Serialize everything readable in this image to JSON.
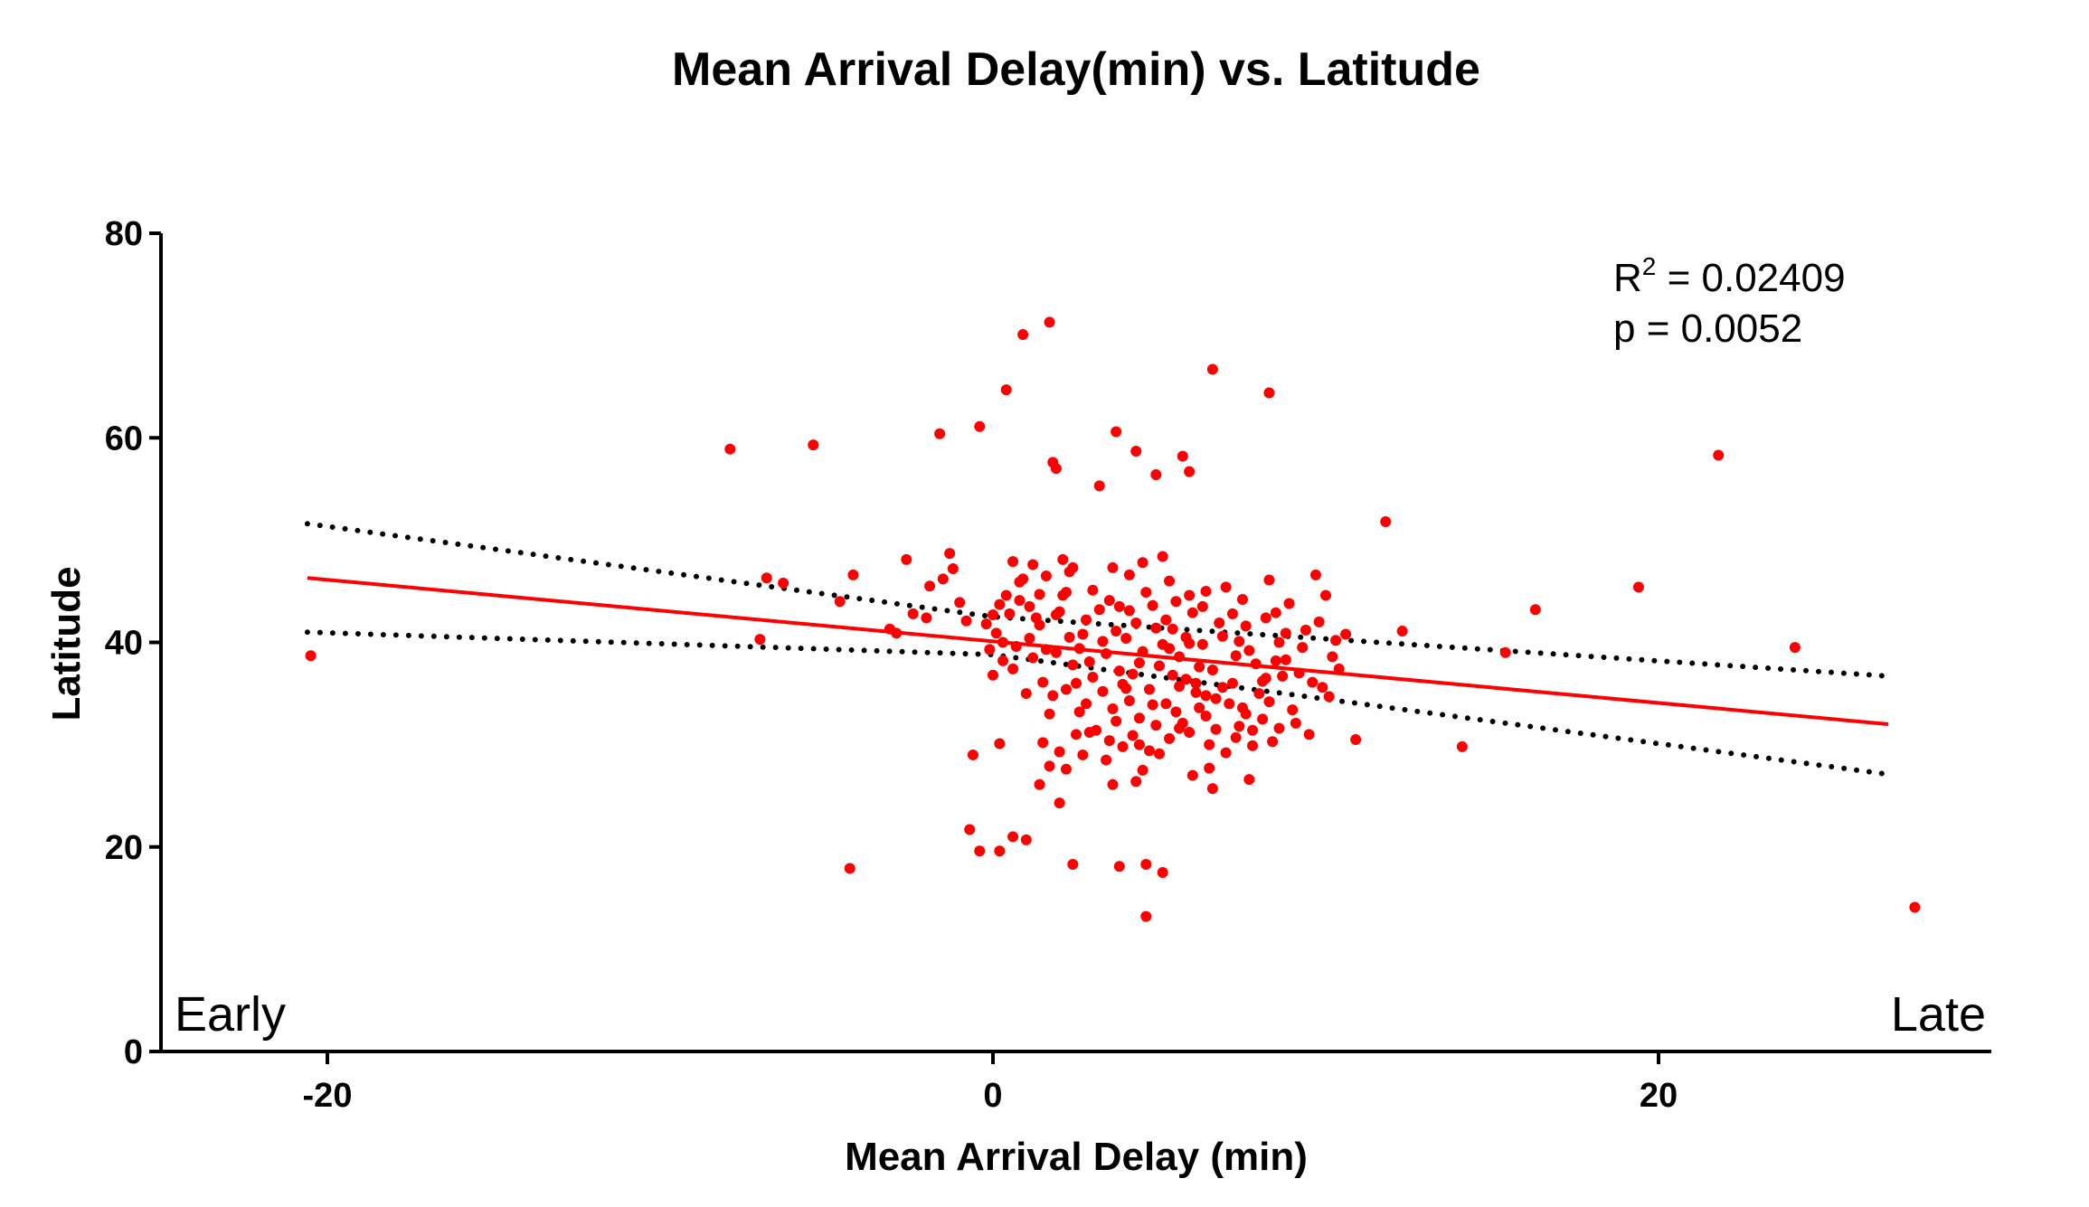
{
  "chart_data": {
    "type": "scatter",
    "title": "Mean Arrival Delay(min) vs. Latitude",
    "xlabel": "Mean Arrival Delay (min)",
    "ylabel": "Latitude",
    "xlim": [
      -25,
      30
    ],
    "ylim": [
      0,
      80
    ],
    "x_ticks": [
      -20,
      0,
      20
    ],
    "x_tick_labels": [
      "-20",
      "0",
      "20"
    ],
    "y_ticks": [
      0,
      20,
      40,
      60,
      80
    ],
    "y_tick_labels": [
      "0",
      "20",
      "40",
      "60",
      "80"
    ],
    "grid": false,
    "legend": "none",
    "colors": {
      "points": "#ff0000",
      "fit_line": "#ff0000",
      "confidence_band": "#000000",
      "axes": "#000000"
    },
    "annotations": {
      "r2_prefix": "R",
      "r2_exponent": "2",
      "r2_value": " = 0.02409",
      "p_text": "p = 0.0052",
      "early_label": "Early",
      "late_label": "Late"
    },
    "fit_line": {
      "x": [
        -20.6,
        26.9
      ],
      "y": [
        46.3,
        32.0
      ]
    },
    "confidence_band_upper": {
      "x": [
        -20.6,
        0.0,
        26.9
      ],
      "y": [
        51.6,
        42.5,
        36.7
      ]
    },
    "confidence_band_lower": {
      "x": [
        -20.6,
        0.0,
        26.9
      ],
      "y": [
        41.0,
        38.8,
        27.1
      ]
    },
    "series": [
      {
        "points": [
          [
            -20.5,
            38.7
          ],
          [
            -7.9,
            58.9
          ],
          [
            -5.4,
            59.3
          ],
          [
            -7.0,
            40.3
          ],
          [
            -6.8,
            46.3
          ],
          [
            -6.3,
            45.8
          ],
          [
            -4.2,
            46.6
          ],
          [
            -4.6,
            44.0
          ],
          [
            -4.3,
            17.9
          ],
          [
            -2.6,
            48.1
          ],
          [
            -2.4,
            42.8
          ],
          [
            -3.1,
            41.3
          ],
          [
            -2.9,
            40.9
          ],
          [
            -1.9,
            45.5
          ],
          [
            -1.6,
            60.4
          ],
          [
            -1.5,
            46.2
          ],
          [
            -1.3,
            48.7
          ],
          [
            -1.2,
            47.2
          ],
          [
            -0.8,
            42.1
          ],
          [
            -0.6,
            29.0
          ],
          [
            -0.7,
            21.7
          ],
          [
            -0.4,
            61.1
          ],
          [
            -0.4,
            19.6
          ],
          [
            0.0,
            42.7
          ],
          [
            0.2,
            30.1
          ],
          [
            0.2,
            19.6
          ],
          [
            0.4,
            64.7
          ],
          [
            0.6,
            47.9
          ],
          [
            0.6,
            21.0
          ],
          [
            0.9,
            70.1
          ],
          [
            1.0,
            20.7
          ],
          [
            1.4,
            41.7
          ],
          [
            1.4,
            26.1
          ],
          [
            1.7,
            71.3
          ],
          [
            1.8,
            57.6
          ],
          [
            1.9,
            57.0
          ],
          [
            1.7,
            33.0
          ],
          [
            2.0,
            24.3
          ],
          [
            2.2,
            27.6
          ],
          [
            2.4,
            18.3
          ],
          [
            2.1,
            44.6
          ],
          [
            2.3,
            40.5
          ],
          [
            2.5,
            36.0
          ],
          [
            2.9,
            31.2
          ],
          [
            3.2,
            55.3
          ],
          [
            3.6,
            26.1
          ],
          [
            3.7,
            60.6
          ],
          [
            3.8,
            18.1
          ],
          [
            4.1,
            46.6
          ],
          [
            4.3,
            58.7
          ],
          [
            4.4,
            30.0
          ],
          [
            4.5,
            27.5
          ],
          [
            4.6,
            18.3
          ],
          [
            4.6,
            13.2
          ],
          [
            4.9,
            56.4
          ],
          [
            5.1,
            17.5
          ],
          [
            5.1,
            48.4
          ],
          [
            5.3,
            39.4
          ],
          [
            5.6,
            35.7
          ],
          [
            5.7,
            58.2
          ],
          [
            5.9,
            56.7
          ],
          [
            5.9,
            44.6
          ],
          [
            6.2,
            37.6
          ],
          [
            6.4,
            34.8
          ],
          [
            6.5,
            27.7
          ],
          [
            6.6,
            66.7
          ],
          [
            7.0,
            45.4
          ],
          [
            7.3,
            30.7
          ],
          [
            7.4,
            40.1
          ],
          [
            7.7,
            26.6
          ],
          [
            8.1,
            36.2
          ],
          [
            8.3,
            64.4
          ],
          [
            8.3,
            46.1
          ],
          [
            8.6,
            31.6
          ],
          [
            9.1,
            32.1
          ],
          [
            9.4,
            41.2
          ],
          [
            9.7,
            46.6
          ],
          [
            10.0,
            44.6
          ],
          [
            10.2,
            38.6
          ],
          [
            10.6,
            40.8
          ],
          [
            10.9,
            30.5
          ],
          [
            11.8,
            51.8
          ],
          [
            12.3,
            41.1
          ],
          [
            14.1,
            29.8
          ],
          [
            15.4,
            39.0
          ],
          [
            16.3,
            43.2
          ],
          [
            19.4,
            45.4
          ],
          [
            21.8,
            58.3
          ],
          [
            24.1,
            39.5
          ],
          [
            27.7,
            14.1
          ],
          [
            0.3,
            38.2
          ],
          [
            0.5,
            42.8
          ],
          [
            0.8,
            44.1
          ],
          [
            1.1,
            40.4
          ],
          [
            1.2,
            38.5
          ],
          [
            1.5,
            36.1
          ],
          [
            1.6,
            39.3
          ],
          [
            1.9,
            42.7
          ],
          [
            2.1,
            48.1
          ],
          [
            2.2,
            44.9
          ],
          [
            2.4,
            37.8
          ],
          [
            2.6,
            33.2
          ],
          [
            2.7,
            40.8
          ],
          [
            2.8,
            42.2
          ],
          [
            3.0,
            36.6
          ],
          [
            3.1,
            31.4
          ],
          [
            3.3,
            35.2
          ],
          [
            3.4,
            38.9
          ],
          [
            3.5,
            44.1
          ],
          [
            3.6,
            33.5
          ],
          [
            3.8,
            37.2
          ],
          [
            3.9,
            29.8
          ],
          [
            4.0,
            40.4
          ],
          [
            4.1,
            34.3
          ],
          [
            4.2,
            36.9
          ],
          [
            4.3,
            41.9
          ],
          [
            4.4,
            32.6
          ],
          [
            4.5,
            39.1
          ],
          [
            4.7,
            35.4
          ],
          [
            4.8,
            43.6
          ],
          [
            4.9,
            31.9
          ],
          [
            5.0,
            37.7
          ],
          [
            5.2,
            34.0
          ],
          [
            5.3,
            30.6
          ],
          [
            5.4,
            41.3
          ],
          [
            5.5,
            33.2
          ],
          [
            5.6,
            38.6
          ],
          [
            5.8,
            36.4
          ],
          [
            5.9,
            31.2
          ],
          [
            6.0,
            42.9
          ],
          [
            6.1,
            35.1
          ],
          [
            6.3,
            39.8
          ],
          [
            6.4,
            32.8
          ],
          [
            6.6,
            37.3
          ],
          [
            6.7,
            34.5
          ],
          [
            6.9,
            40.6
          ],
          [
            7.0,
            29.2
          ],
          [
            7.2,
            36.0
          ],
          [
            7.3,
            38.7
          ],
          [
            7.5,
            33.6
          ],
          [
            7.6,
            41.6
          ],
          [
            7.8,
            31.4
          ],
          [
            7.9,
            37.9
          ],
          [
            8.0,
            35.0
          ],
          [
            8.2,
            42.4
          ],
          [
            8.4,
            30.3
          ],
          [
            8.5,
            38.2
          ],
          [
            8.7,
            36.7
          ],
          [
            8.8,
            40.9
          ],
          [
            9.0,
            33.4
          ],
          [
            9.3,
            39.5
          ],
          [
            9.6,
            36.1
          ],
          [
            9.8,
            42.0
          ],
          [
            10.1,
            34.7
          ],
          [
            10.4,
            37.4
          ],
          [
            0.1,
            40.9
          ],
          [
            0.4,
            44.6
          ],
          [
            0.7,
            39.6
          ],
          [
            0.9,
            46.2
          ],
          [
            1.3,
            42.4
          ],
          [
            1.5,
            30.2
          ],
          [
            1.8,
            34.8
          ],
          [
            2.0,
            29.3
          ],
          [
            2.3,
            46.9
          ],
          [
            2.5,
            31.0
          ],
          [
            2.9,
            38.1
          ],
          [
            3.2,
            43.2
          ],
          [
            3.4,
            28.5
          ],
          [
            3.7,
            41.1
          ],
          [
            3.9,
            35.9
          ],
          [
            4.2,
            30.9
          ],
          [
            4.4,
            38.0
          ],
          [
            4.6,
            44.9
          ],
          [
            4.8,
            33.9
          ],
          [
            5.0,
            29.1
          ],
          [
            5.2,
            42.2
          ],
          [
            5.4,
            36.8
          ],
          [
            5.7,
            32.1
          ],
          [
            5.9,
            39.9
          ],
          [
            6.2,
            33.6
          ],
          [
            6.5,
            30.0
          ],
          [
            6.8,
            41.9
          ],
          [
            7.1,
            34.0
          ],
          [
            7.4,
            31.8
          ],
          [
            7.7,
            39.2
          ],
          [
            8.1,
            32.5
          ],
          [
            8.6,
            40.0
          ],
          [
            9.2,
            37.0
          ],
          [
            -0.2,
            41.8
          ],
          [
            -0.1,
            39.3
          ],
          [
            0.0,
            36.8
          ],
          [
            0.2,
            43.7
          ],
          [
            0.6,
            37.4
          ],
          [
            1.0,
            35.0
          ],
          [
            1.4,
            44.7
          ],
          [
            1.7,
            27.9
          ],
          [
            2.2,
            35.4
          ],
          [
            2.6,
            39.4
          ],
          [
            3.0,
            45.1
          ],
          [
            3.5,
            30.4
          ],
          [
            3.8,
            43.5
          ],
          [
            4.0,
            35.5
          ],
          [
            4.5,
            47.8
          ],
          [
            5.1,
            39.8
          ],
          [
            5.5,
            44.0
          ],
          [
            6.0,
            27.0
          ],
          [
            6.4,
            45.0
          ],
          [
            6.9,
            35.6
          ],
          [
            7.2,
            42.8
          ],
          [
            7.8,
            29.9
          ],
          [
            8.3,
            34.2
          ],
          [
            8.9,
            43.8
          ],
          [
            9.5,
            31.0
          ],
          [
            10.3,
            40.2
          ],
          [
            0.8,
            45.9
          ],
          [
            1.2,
            47.6
          ],
          [
            1.6,
            46.5
          ],
          [
            2.0,
            43.0
          ],
          [
            2.4,
            47.3
          ],
          [
            2.8,
            34.0
          ],
          [
            3.3,
            40.1
          ],
          [
            3.7,
            32.3
          ],
          [
            4.1,
            43.1
          ],
          [
            4.7,
            29.4
          ],
          [
            5.3,
            46.0
          ],
          [
            5.8,
            40.5
          ],
          [
            6.3,
            43.5
          ],
          [
            6.7,
            31.5
          ],
          [
            7.5,
            44.2
          ],
          [
            8.2,
            36.5
          ],
          [
            8.8,
            38.3
          ],
          [
            9.9,
            35.6
          ],
          [
            -1.0,
            43.9
          ],
          [
            -2.0,
            42.4
          ],
          [
            0.3,
            40.0
          ],
          [
            1.1,
            43.5
          ],
          [
            1.9,
            39.0
          ],
          [
            2.7,
            29.0
          ],
          [
            3.6,
            47.3
          ],
          [
            4.3,
            26.4
          ],
          [
            4.9,
            41.4
          ],
          [
            5.6,
            31.6
          ],
          [
            6.1,
            36.0
          ],
          [
            6.6,
            25.7
          ],
          [
            7.6,
            33.0
          ],
          [
            8.5,
            42.9
          ]
        ]
      }
    ]
  }
}
